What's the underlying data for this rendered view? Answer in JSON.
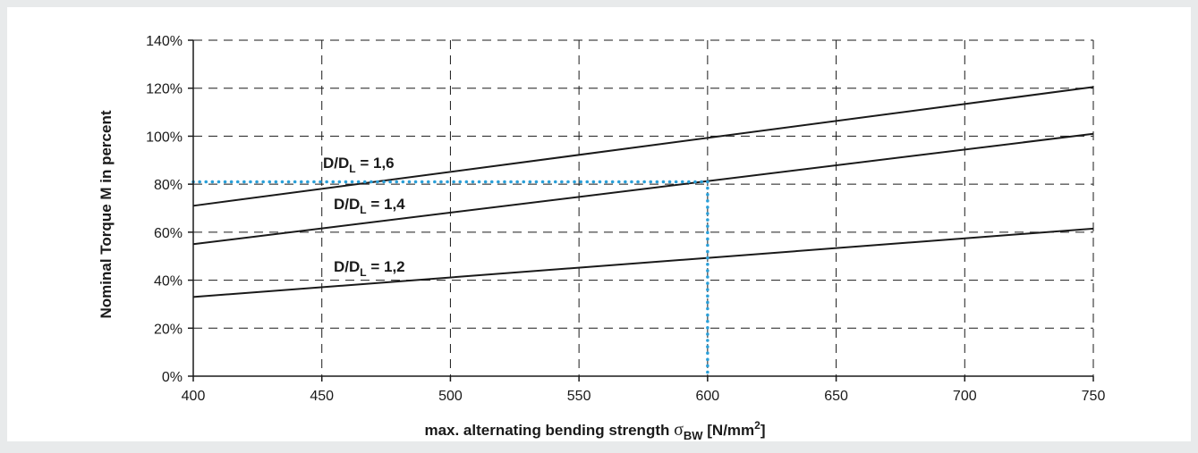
{
  "chart_data": {
    "type": "line",
    "xlabel": "max. alternating bending strength",
    "xlabel_symbol": "σ",
    "xlabel_subscript": "BW",
    "xlabel_unit_open": "[N/mm",
    "xlabel_unit_sup": "2",
    "xlabel_unit_close": "]",
    "ylabel": "Nominal Torque M in percent",
    "xlim": [
      400,
      750
    ],
    "ylim": [
      0,
      140
    ],
    "x_ticks": [
      400,
      450,
      500,
      550,
      600,
      650,
      700,
      750
    ],
    "y_ticks": [
      0,
      20,
      40,
      60,
      80,
      100,
      120,
      140
    ],
    "y_tick_labels": [
      "0%",
      "20%",
      "40%",
      "60%",
      "80%",
      "100%",
      "120%",
      "140%"
    ],
    "x_tick_labels": [
      "400",
      "450",
      "500",
      "550",
      "600",
      "650",
      "700",
      "750"
    ],
    "grid": true,
    "series": [
      {
        "name": "D/D_L = 1,6",
        "label_main": "D/D",
        "label_sub": "L",
        "label_tail": " = 1,6",
        "x": [
          400,
          750
        ],
        "y": [
          71,
          120.5
        ],
        "color": "#1a1a1a"
      },
      {
        "name": "D/D_L = 1,4",
        "label_main": "D/D",
        "label_sub": "L",
        "label_tail": " = 1,4",
        "x": [
          400,
          750
        ],
        "y": [
          55,
          101
        ],
        "color": "#1a1a1a"
      },
      {
        "name": "D/D_L = 1,2",
        "label_main": "D/D",
        "label_sub": "L",
        "label_tail": " = 1,2",
        "x": [
          400,
          750
        ],
        "y": [
          33,
          61.5
        ],
        "color": "#1a1a1a"
      }
    ],
    "example_reading": {
      "x": 600,
      "y": 81,
      "color": "#2a9fd8"
    }
  }
}
